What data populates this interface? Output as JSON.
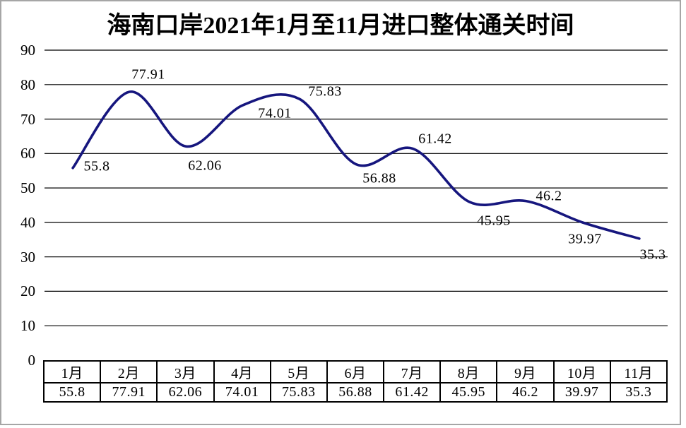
{
  "window": {
    "background_color": "#ffffff",
    "frame_border_color": "#a6a6a6"
  },
  "chart_data": {
    "type": "line",
    "title": "海南口岸2021年1月至11月进口整体通关时间",
    "categories": [
      "1月",
      "2月",
      "3月",
      "4月",
      "5月",
      "6月",
      "7月",
      "8月",
      "9月",
      "10月",
      "11月"
    ],
    "values": [
      55.8,
      77.91,
      62.06,
      74.01,
      75.83,
      56.88,
      61.42,
      45.95,
      46.2,
      39.97,
      35.3
    ],
    "data_labels": [
      "55.8",
      "77.91",
      "62.06",
      "74.01",
      "75.83",
      "56.88",
      "61.42",
      "45.95",
      "46.2",
      "39.97",
      "35.3"
    ],
    "ylim": [
      0,
      90
    ],
    "y_tick_step": 10,
    "y_tick_labels": [
      "0",
      "10",
      "20",
      "30",
      "40",
      "50",
      "60",
      "70",
      "80",
      "90"
    ],
    "xlabel": "",
    "ylabel": "",
    "grid": true,
    "grid_color": "#000000",
    "legend": "none",
    "smooth": true,
    "line_color": "#16167E",
    "label_text_color": "#000000",
    "shows_data_table": true
  }
}
